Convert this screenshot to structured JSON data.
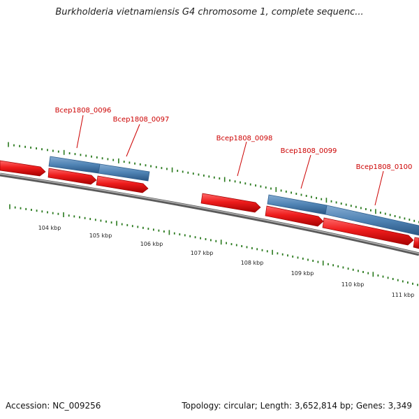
{
  "title": "Burkholderia vietnamiensis G4 chromosome 1, complete sequenc...",
  "footer": {
    "accession": "Accession: NC_009256",
    "summary": "Topology: circular; Length: 3,652,814 bp; Genes: 3,349"
  },
  "colors": {
    "cds": "#ee1c1c",
    "gene": "#4f83b4",
    "label": "#cc0000",
    "tick": "#2a7a1e",
    "backbone": "#808080"
  },
  "genes": [
    {
      "name": "Bcep1808_0096"
    },
    {
      "name": "Bcep1808_0097"
    },
    {
      "name": "Bcep1808_0098"
    },
    {
      "name": "Bcep1808_0099"
    },
    {
      "name": "Bcep1808_0100"
    }
  ],
  "scale_labels": [
    "104 kbp",
    "105 kbp",
    "106 kbp",
    "107 kbp",
    "108 kbp",
    "109 kbp",
    "110 kbp",
    "111 kbp"
  ]
}
